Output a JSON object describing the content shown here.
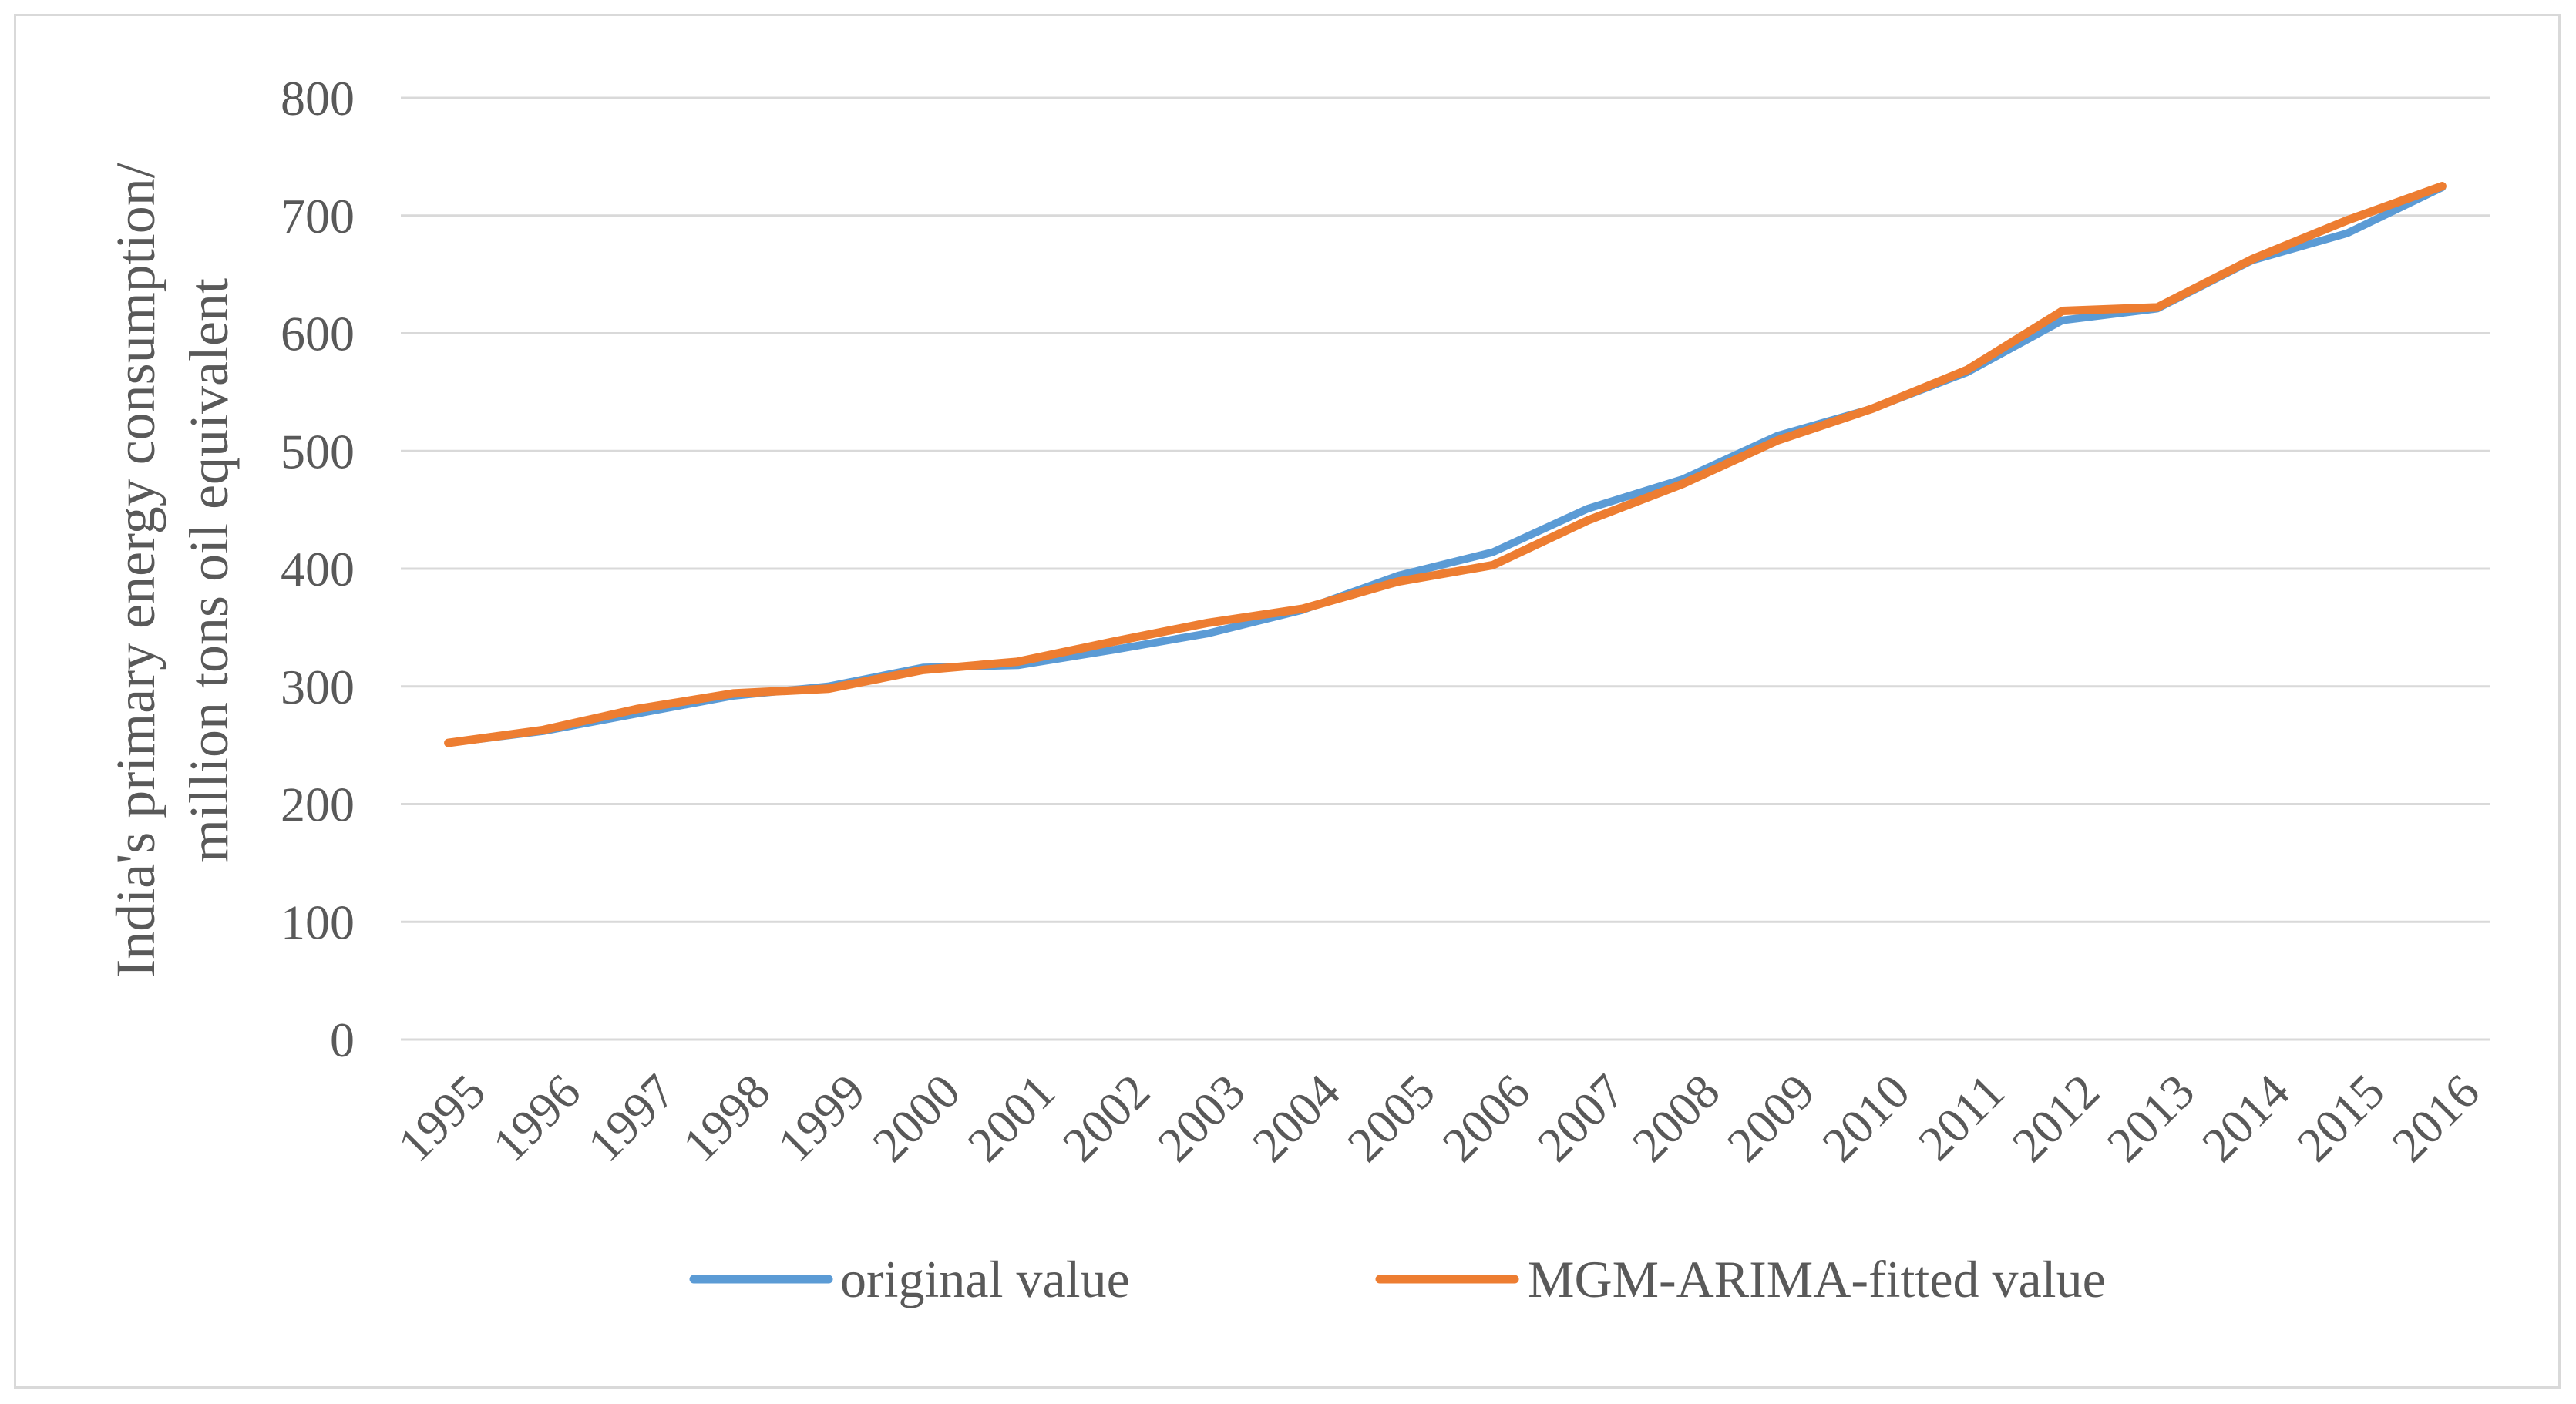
{
  "chart_data": {
    "type": "line",
    "title": "",
    "xlabel": "",
    "ylabel_line1": "India's primary energy consumption/",
    "ylabel_line2": "million tons oil equivalent",
    "ylim": [
      0,
      800
    ],
    "yticks": [
      "0",
      "100",
      "200",
      "300",
      "400",
      "500",
      "600",
      "700",
      "800"
    ],
    "categories": [
      "1995",
      "1996",
      "1997",
      "1998",
      "1999",
      "2000",
      "2001",
      "2002",
      "2003",
      "2004",
      "2005",
      "2006",
      "2007",
      "2008",
      "2009",
      "2010",
      "2011",
      "2012",
      "2013",
      "2014",
      "2015",
      "2016"
    ],
    "grid": true,
    "legend_position": "bottom",
    "series": [
      {
        "name": "original value",
        "color": "#5b9bd5",
        "values": [
          252,
          262,
          277,
          292,
          300,
          316,
          318,
          331,
          345,
          365,
          394,
          414,
          451,
          476,
          513,
          536,
          567,
          611,
          621,
          662,
          685,
          724
        ]
      },
      {
        "name": "MGM-ARIMA-fitted value",
        "color": "#ed7d31",
        "values": [
          252,
          263,
          281,
          294,
          298,
          314,
          321,
          338,
          354,
          366,
          389,
          403,
          441,
          472,
          509,
          536,
          569,
          619,
          622,
          663,
          696,
          725
        ]
      }
    ]
  }
}
